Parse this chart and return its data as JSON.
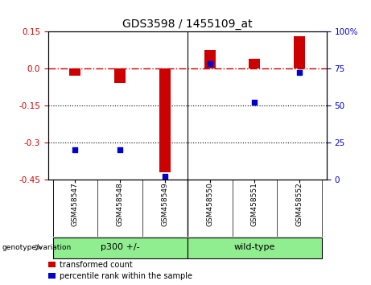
{
  "title": "GDS3598 / 1455109_at",
  "samples": [
    "GSM458547",
    "GSM458548",
    "GSM458549",
    "GSM458550",
    "GSM458551",
    "GSM458552"
  ],
  "red_values": [
    -0.03,
    -0.06,
    -0.42,
    0.075,
    0.04,
    0.13
  ],
  "blue_values_pct": [
    20,
    20,
    2,
    78,
    52,
    72
  ],
  "group_labels": [
    "p300 +/-",
    "wild-type"
  ],
  "group_ranges": [
    [
      0,
      2
    ],
    [
      3,
      5
    ]
  ],
  "group_box_color": "#90ee90",
  "genotype_label": "genotype/variation",
  "ylim_left": [
    -0.45,
    0.15
  ],
  "ylim_right": [
    0,
    100
  ],
  "yticks_left": [
    -0.45,
    -0.3,
    -0.15,
    0.0,
    0.15
  ],
  "yticks_right": [
    0,
    25,
    50,
    75,
    100
  ],
  "red_color": "#cc0000",
  "blue_color": "#0000cc",
  "hline_color": "#cc0000",
  "bar_width": 0.25,
  "legend_items": [
    "transformed count",
    "percentile rank within the sample"
  ],
  "background_color": "#ffffff",
  "tick_label_area_color": "#c8c8c8"
}
